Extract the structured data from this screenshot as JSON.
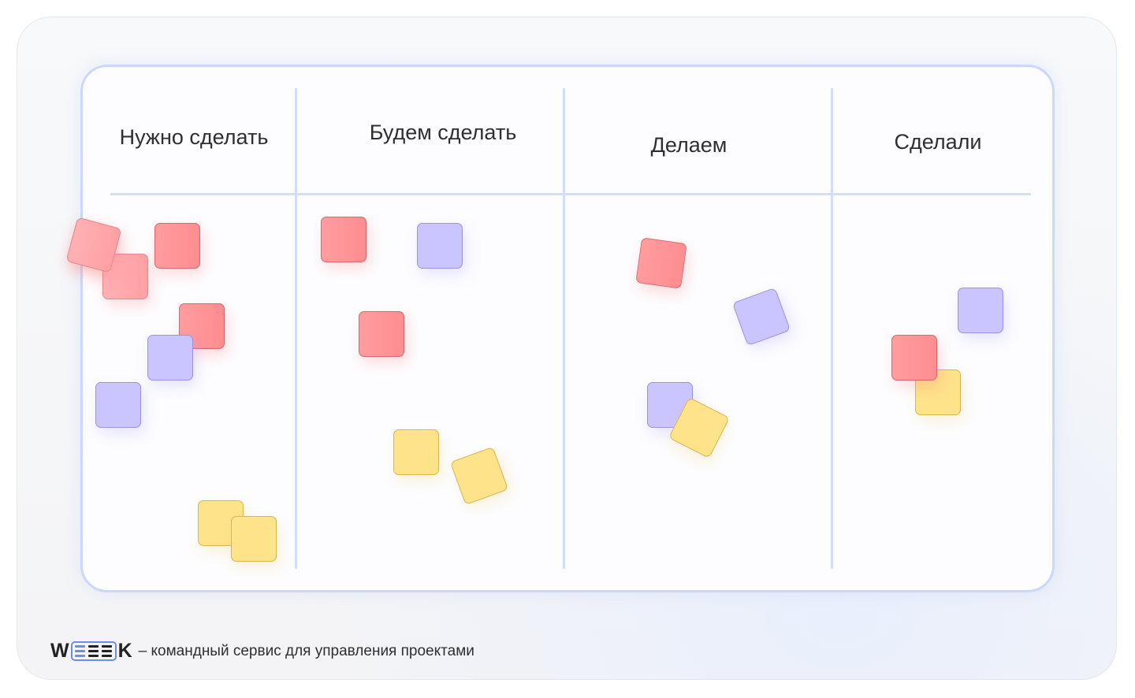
{
  "board": {
    "columns": [
      {
        "title": "Нужно сделать"
      },
      {
        "title": "Будем сделать"
      },
      {
        "title": "Делаем"
      },
      {
        "title": "Сделали"
      }
    ]
  },
  "footer": {
    "logo": "WEEEK",
    "logo_w": "W",
    "logo_k": "K",
    "tagline": "– командный сервис для управления проектами"
  },
  "colors": {
    "red": "#fd8d90",
    "purple": "#cbc5ff",
    "yellow": "#fee38a",
    "accent": "#6b8cf0"
  }
}
